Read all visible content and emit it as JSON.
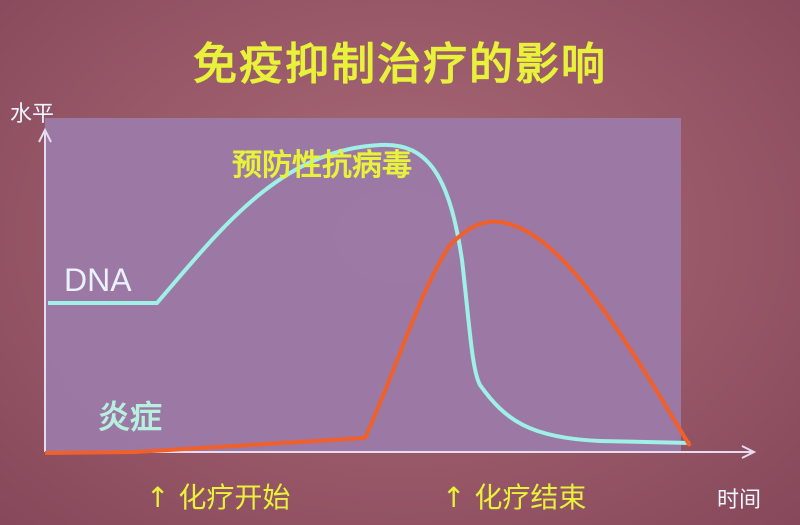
{
  "title": "免疫抑制治疗的影响",
  "axes": {
    "y_label": "水平",
    "x_label": "时间"
  },
  "labels": {
    "antiviral": "预防性抗病毒",
    "dna": "DNA",
    "inflammation": "炎症"
  },
  "markers": [
    {
      "arrow": "↑",
      "text": "化疗开始"
    },
    {
      "arrow": "↑",
      "text": "化疗结束"
    }
  ],
  "colors": {
    "dna_curve": "#9ff0e6",
    "inflammation_curve": "#f0602a",
    "text_accent": "#e8f23a",
    "panel": "#9c7aa8"
  }
}
